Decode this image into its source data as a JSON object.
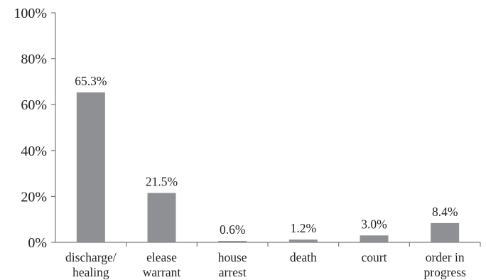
{
  "chart_data": {
    "type": "bar",
    "title": "",
    "xlabel": "",
    "ylabel": "",
    "ylim": [
      0,
      100
    ],
    "y_ticks": [
      "0%",
      "20%",
      "40%",
      "60%",
      "80%",
      "100%"
    ],
    "y_tick_values": [
      0,
      20,
      40,
      60,
      80,
      100
    ],
    "categories": [
      [
        "discharge/",
        "healing"
      ],
      [
        "elease",
        "warrant"
      ],
      [
        "house",
        "arrest"
      ],
      [
        "death"
      ],
      [
        "court"
      ],
      [
        "order in",
        "progress"
      ]
    ],
    "values": [
      65.3,
      21.5,
      0.6,
      1.2,
      3.0,
      8.4
    ],
    "data_labels": [
      "65.3%",
      "21.5%",
      "0.6%",
      "1.2%",
      "3.0%",
      "8.4%"
    ],
    "grid": false,
    "legend": "none",
    "bar_color": "#8f9093"
  }
}
